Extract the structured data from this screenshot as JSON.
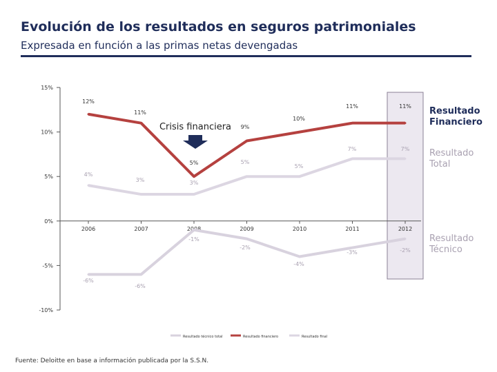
{
  "header": {
    "title": "Evolución de los resultados en seguros patrimoniales",
    "subtitle": "Expresada en función a las primas netas devengadas"
  },
  "footer": {
    "source": "Fuente: Deloitte en base a información publicada por la S.S.N."
  },
  "colors": {
    "title": "#1f2d5a",
    "financiero": "#b5413f",
    "total": "#dcd6e2",
    "tecnico": "#d8d2de",
    "highlight": "#ece8f0",
    "arrow": "#1f2d5a"
  },
  "chart_data": {
    "type": "line",
    "categories": [
      "2006",
      "2007",
      "2008",
      "2009",
      "2010",
      "2011",
      "2012"
    ],
    "y_ticks": [
      "15%",
      "10%",
      "5%",
      "0%",
      "-5%",
      "-10%"
    ],
    "y_tick_values": [
      15,
      10,
      5,
      0,
      -5,
      -10
    ],
    "ylim": [
      -10,
      15
    ],
    "highlight_category": "2012",
    "annotation": "Crisis financiera",
    "series": [
      {
        "name": "Resultado Financiero",
        "side_label": [
          "Resultado",
          "Financiero"
        ],
        "values": [
          12,
          11,
          5,
          9,
          10,
          11,
          11
        ],
        "labels": [
          "12%",
          "11%",
          "5%",
          "9%",
          "10%",
          "11%",
          "11%"
        ]
      },
      {
        "name": "Resultado Total",
        "side_label": [
          "Resultado",
          "Total"
        ],
        "values": [
          4,
          3,
          3,
          5,
          5,
          7,
          7
        ],
        "labels": [
          "4%",
          "3%",
          "3%",
          "5%",
          "5%",
          "7%",
          "7%"
        ]
      },
      {
        "name": "Resultado Técnico",
        "side_label": [
          "Resultado",
          "Técnico"
        ],
        "values": [
          -6,
          -6,
          -1,
          -2,
          -4,
          -3,
          -2
        ],
        "labels": [
          "-6%",
          "-6%",
          "-1%",
          "-2%",
          "-4%",
          "-3%",
          "-2%"
        ]
      }
    ],
    "legend": [
      "Resultado técnico total",
      "Resultado financiero",
      "Resultado final"
    ]
  }
}
